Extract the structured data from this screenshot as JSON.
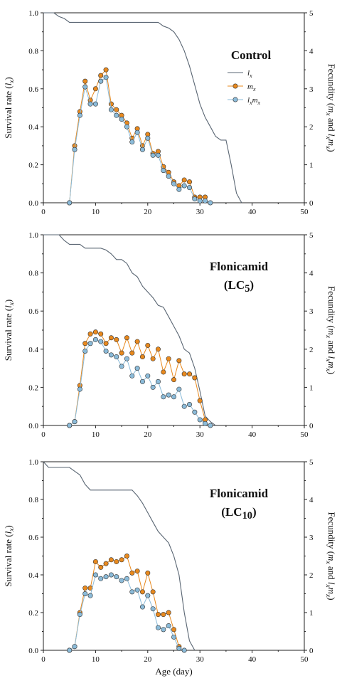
{
  "chart_data": [
    {
      "type": "line",
      "title_lines": [
        [
          "Control"
        ]
      ],
      "x_ticks": [
        "0",
        "10",
        "20",
        "30",
        "40",
        "50"
      ],
      "y_ticks": [
        "0.0",
        "0.2",
        "0.4",
        "0.6",
        "0.8",
        "1.0"
      ],
      "y2_ticks": [
        "0",
        "1",
        "2",
        "3",
        "4",
        "5"
      ],
      "xlim": [
        0,
        50
      ],
      "ylim": [
        0,
        1
      ],
      "y2lim": [
        0,
        5
      ],
      "ylabel": "Survival rate (lx)",
      "y2label": "Fecundity (mx and lxmx)",
      "xlabel": "",
      "legend": {
        "position": "right",
        "entries": [
          "lx",
          "mx",
          "lxmx"
        ]
      },
      "series": [
        {
          "name": "lx",
          "axis": "left",
          "color": "#5a6673",
          "x": [
            0,
            2,
            3,
            4,
            5,
            10,
            20,
            22,
            23,
            24,
            25,
            26,
            27,
            28,
            29,
            30,
            31,
            32,
            33,
            34,
            35,
            36,
            37,
            38
          ],
          "y": [
            1.0,
            1.0,
            0.98,
            0.97,
            0.95,
            0.95,
            0.95,
            0.95,
            0.93,
            0.92,
            0.9,
            0.86,
            0.8,
            0.72,
            0.62,
            0.52,
            0.45,
            0.4,
            0.35,
            0.33,
            0.33,
            0.2,
            0.05,
            0.0
          ]
        },
        {
          "name": "mx",
          "axis": "right",
          "color": "#e8891e",
          "x": [
            5,
            6,
            7,
            8,
            9,
            10,
            11,
            12,
            13,
            14,
            15,
            16,
            17,
            18,
            19,
            20,
            21,
            22,
            23,
            24,
            25,
            26,
            27,
            28,
            29,
            30,
            31
          ],
          "y": [
            0.0,
            1.5,
            2.4,
            3.2,
            2.7,
            3.0,
            3.35,
            3.5,
            2.6,
            2.45,
            2.3,
            2.1,
            1.7,
            1.95,
            1.5,
            1.8,
            1.3,
            1.35,
            0.95,
            0.8,
            0.55,
            0.45,
            0.6,
            0.55,
            0.15,
            0.15,
            0.15
          ]
        },
        {
          "name": "lxmx",
          "axis": "right",
          "color": "#8bbbd9",
          "x": [
            5,
            6,
            7,
            8,
            9,
            10,
            11,
            12,
            13,
            14,
            15,
            16,
            17,
            18,
            19,
            20,
            21,
            22,
            23,
            24,
            25,
            26,
            27,
            28,
            29,
            30,
            31,
            32
          ],
          "y": [
            0.0,
            1.4,
            2.3,
            3.05,
            2.6,
            2.6,
            3.2,
            3.3,
            2.45,
            2.3,
            2.2,
            2.0,
            1.6,
            1.85,
            1.4,
            1.7,
            1.25,
            1.25,
            0.85,
            0.7,
            0.5,
            0.35,
            0.45,
            0.4,
            0.1,
            0.05,
            0.05,
            0.0
          ]
        }
      ]
    },
    {
      "type": "line",
      "title_lines": [
        [
          "Flonicamid"
        ],
        [
          "(LC",
          "5",
          ")"
        ]
      ],
      "x_ticks": [
        "0",
        "10",
        "20",
        "30",
        "40",
        "50"
      ],
      "y_ticks": [
        "0.0",
        "0.2",
        "0.4",
        "0.6",
        "0.8",
        "1.0"
      ],
      "y2_ticks": [
        "0",
        "1",
        "2",
        "3",
        "4",
        "5"
      ],
      "xlim": [
        0,
        50
      ],
      "ylim": [
        0,
        1
      ],
      "y2lim": [
        0,
        5
      ],
      "ylabel": "Survival rate (lx)",
      "y2label": "Fecundity (mx and lxmx)",
      "xlabel": "",
      "series": [
        {
          "name": "lx",
          "axis": "left",
          "color": "#5a6673",
          "x": [
            0,
            2,
            3,
            4,
            5,
            6,
            7,
            8,
            9,
            10,
            11,
            12,
            13,
            14,
            15,
            16,
            17,
            18,
            19,
            20,
            21,
            22,
            23,
            24,
            25,
            26,
            27,
            28,
            29,
            30,
            31,
            32,
            33
          ],
          "y": [
            1.0,
            1.0,
            1.0,
            0.97,
            0.95,
            0.95,
            0.95,
            0.93,
            0.93,
            0.93,
            0.93,
            0.92,
            0.9,
            0.87,
            0.87,
            0.85,
            0.8,
            0.78,
            0.73,
            0.7,
            0.67,
            0.63,
            0.62,
            0.57,
            0.52,
            0.47,
            0.4,
            0.38,
            0.3,
            0.18,
            0.05,
            0.02,
            0.0
          ]
        },
        {
          "name": "mx",
          "axis": "right",
          "color": "#e8891e",
          "x": [
            5,
            6,
            7,
            8,
            9,
            10,
            11,
            12,
            13,
            14,
            15,
            16,
            17,
            18,
            19,
            20,
            21,
            22,
            23,
            24,
            25,
            26,
            27,
            28,
            29,
            30,
            31
          ],
          "y": [
            0.0,
            0.1,
            1.05,
            2.15,
            2.4,
            2.45,
            2.4,
            2.15,
            2.3,
            2.25,
            1.9,
            2.3,
            1.9,
            2.2,
            1.8,
            2.1,
            1.75,
            2.0,
            1.4,
            1.75,
            1.2,
            1.7,
            1.35,
            1.35,
            1.25,
            0.65,
            0.15
          ]
        },
        {
          "name": "lxmx",
          "axis": "right",
          "color": "#8bbbd9",
          "x": [
            5,
            6,
            7,
            8,
            9,
            10,
            11,
            12,
            13,
            14,
            15,
            16,
            17,
            18,
            19,
            20,
            21,
            22,
            23,
            24,
            25,
            26,
            27,
            28,
            29,
            30,
            31,
            32
          ],
          "y": [
            0.0,
            0.1,
            0.95,
            1.95,
            2.15,
            2.25,
            2.2,
            1.95,
            1.85,
            1.8,
            1.55,
            1.75,
            1.3,
            1.5,
            1.15,
            1.3,
            1.0,
            1.15,
            0.75,
            0.8,
            0.75,
            0.95,
            0.5,
            0.55,
            0.35,
            0.15,
            0.05,
            0.0
          ]
        }
      ]
    },
    {
      "type": "line",
      "title_lines": [
        [
          "Flonicamid"
        ],
        [
          "(LC",
          "10",
          ")"
        ]
      ],
      "x_ticks": [
        "0",
        "10",
        "20",
        "30",
        "40",
        "50"
      ],
      "y_ticks": [
        "0.0",
        "0.2",
        "0.4",
        "0.6",
        "0.8",
        "1.0"
      ],
      "y2_ticks": [
        "0",
        "1",
        "2",
        "3",
        "4",
        "5"
      ],
      "xlim": [
        0,
        50
      ],
      "ylim": [
        0,
        1
      ],
      "y2lim": [
        0,
        5
      ],
      "ylabel": "Survival rate (lx)",
      "y2label": "Fecundity (mx and lxmx)",
      "xlabel": "Age (day)",
      "series": [
        {
          "name": "lx",
          "axis": "left",
          "color": "#5a6673",
          "x": [
            0,
            1,
            5,
            6,
            7,
            8,
            9,
            10,
            17,
            18,
            19,
            20,
            21,
            22,
            23,
            24,
            25,
            26,
            27,
            28,
            29
          ],
          "y": [
            1.0,
            0.97,
            0.97,
            0.95,
            0.93,
            0.88,
            0.85,
            0.85,
            0.85,
            0.82,
            0.78,
            0.73,
            0.68,
            0.63,
            0.6,
            0.57,
            0.5,
            0.4,
            0.2,
            0.05,
            0.0
          ]
        },
        {
          "name": "mx",
          "axis": "right",
          "color": "#e8891e",
          "x": [
            5,
            6,
            7,
            8,
            9,
            10,
            11,
            12,
            13,
            14,
            15,
            16,
            17,
            18,
            19,
            20,
            21,
            22,
            23,
            24,
            25,
            26
          ],
          "y": [
            0.0,
            0.1,
            1.0,
            1.65,
            1.65,
            2.35,
            2.2,
            2.3,
            2.4,
            2.35,
            2.4,
            2.5,
            2.05,
            2.1,
            1.55,
            2.05,
            1.55,
            0.95,
            0.95,
            1.0,
            0.55,
            0.1
          ]
        },
        {
          "name": "lxmx",
          "axis": "right",
          "color": "#8bbbd9",
          "x": [
            5,
            6,
            7,
            8,
            9,
            10,
            11,
            12,
            13,
            14,
            15,
            16,
            17,
            18,
            19,
            20,
            21,
            22,
            23,
            24,
            25,
            26,
            27
          ],
          "y": [
            0.0,
            0.1,
            0.95,
            1.5,
            1.45,
            2.0,
            1.9,
            1.95,
            2.0,
            1.95,
            1.85,
            1.9,
            1.55,
            1.6,
            1.15,
            1.45,
            1.1,
            0.6,
            0.55,
            0.65,
            0.35,
            0.05,
            0.0
          ]
        }
      ]
    }
  ]
}
